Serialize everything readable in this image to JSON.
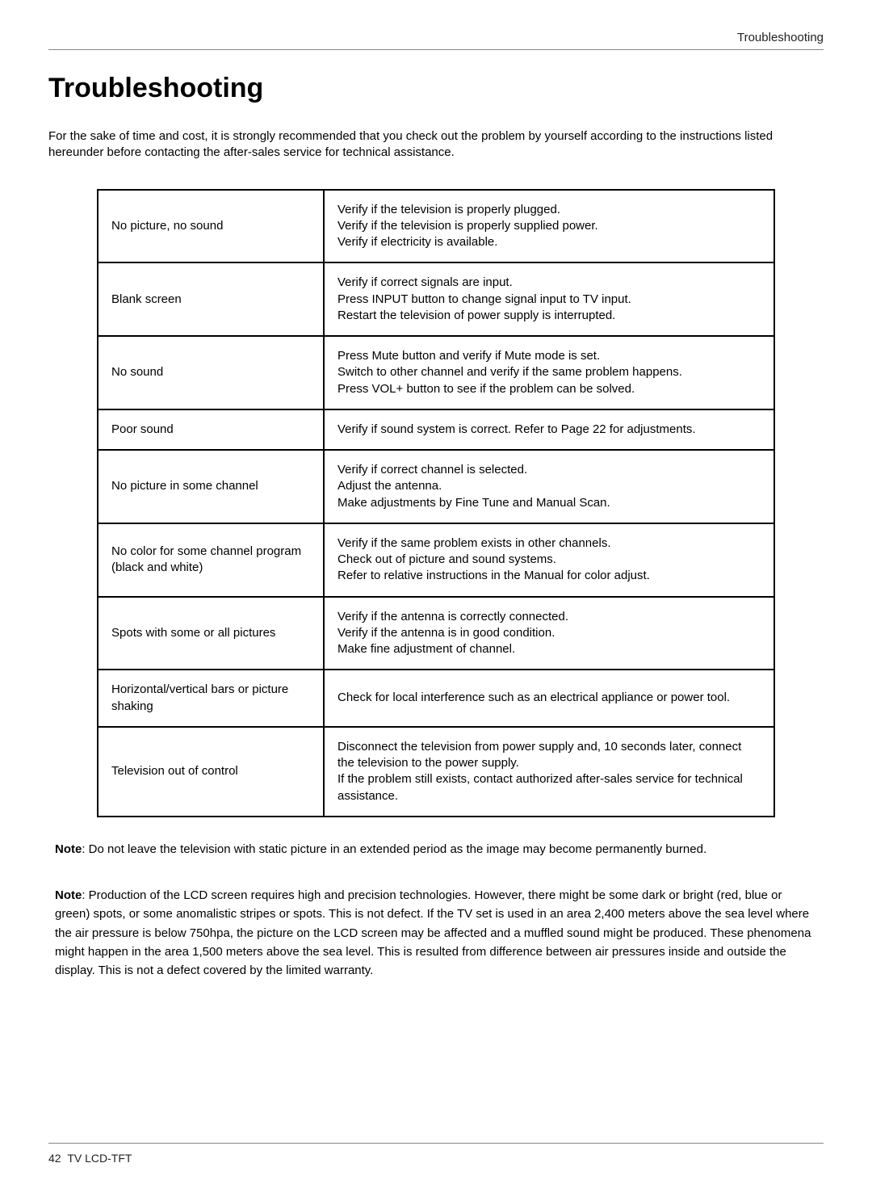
{
  "header": {
    "section": "Troubleshooting"
  },
  "title": "Troubleshooting",
  "intro": "For the sake of time and cost, it is strongly recommended that you check out the problem by yourself according to the instructions listed hereunder before contacting the after-sales service for technical assistance.",
  "table": {
    "rows": [
      {
        "problem": "No picture, no sound",
        "solution": "Verify if the television is properly plugged.\nVerify if the television is properly supplied power.\nVerify if electricity is available."
      },
      {
        "problem": "Blank screen",
        "solution": "Verify if correct signals are input.\nPress INPUT button to change signal input to TV input.\nRestart the television of power supply is interrupted."
      },
      {
        "problem": "No sound",
        "solution": "Press Mute button and verify if Mute mode is set.\nSwitch to other channel and verify if the same problem happens.\nPress VOL+ button to see if the problem can be solved."
      },
      {
        "problem": "Poor sound",
        "solution": "Verify if sound system is correct. Refer to Page 22 for adjustments."
      },
      {
        "problem": "No picture in some channel",
        "solution": "Verify if correct channel is selected.\nAdjust the antenna.\nMake adjustments by Fine Tune and Manual Scan."
      },
      {
        "problem": "No color for some channel program\n(black and white)",
        "solution": "Verify if the same problem exists in other channels.\nCheck out of picture and sound systems.\nRefer to relative instructions in the Manual for color adjust."
      },
      {
        "problem": "Spots with some or all pictures",
        "solution": "Verify if the antenna is correctly connected.\nVerify if the antenna is in good condition.\nMake fine adjustment of channel."
      },
      {
        "problem": "Horizontal/vertical bars or picture shaking",
        "solution": "Check for local interference such as an electrical appliance or power tool."
      },
      {
        "problem": "Television out of control",
        "solution": "Disconnect the television from power supply and, 10 seconds later, connect the television to the power supply.\nIf the problem still exists, contact authorized after-sales service for technical assistance."
      }
    ]
  },
  "note1_label": "Note",
  "note1_text": ": Do not leave the television with static picture in an extended period as the image may become permanently burned.",
  "note2_label": "Note",
  "note2_text": ": Production of the LCD screen requires high and precision technologies. However, there might be some dark or bright (red, blue or green) spots, or some anomalistic stripes or spots. This is not defect. If the TV set is used in an area 2,400 meters above the sea level where the air pressure is below 750hpa, the picture on the LCD screen may be affected and a muffled sound might be produced. These phenomena might happen in the area 1,500 meters above the sea level. This is resulted from difference between air pressures inside and outside the display. This is not a defect covered by the limited warranty.",
  "footer": {
    "page": "42",
    "label": "TV LCD-TFT"
  }
}
